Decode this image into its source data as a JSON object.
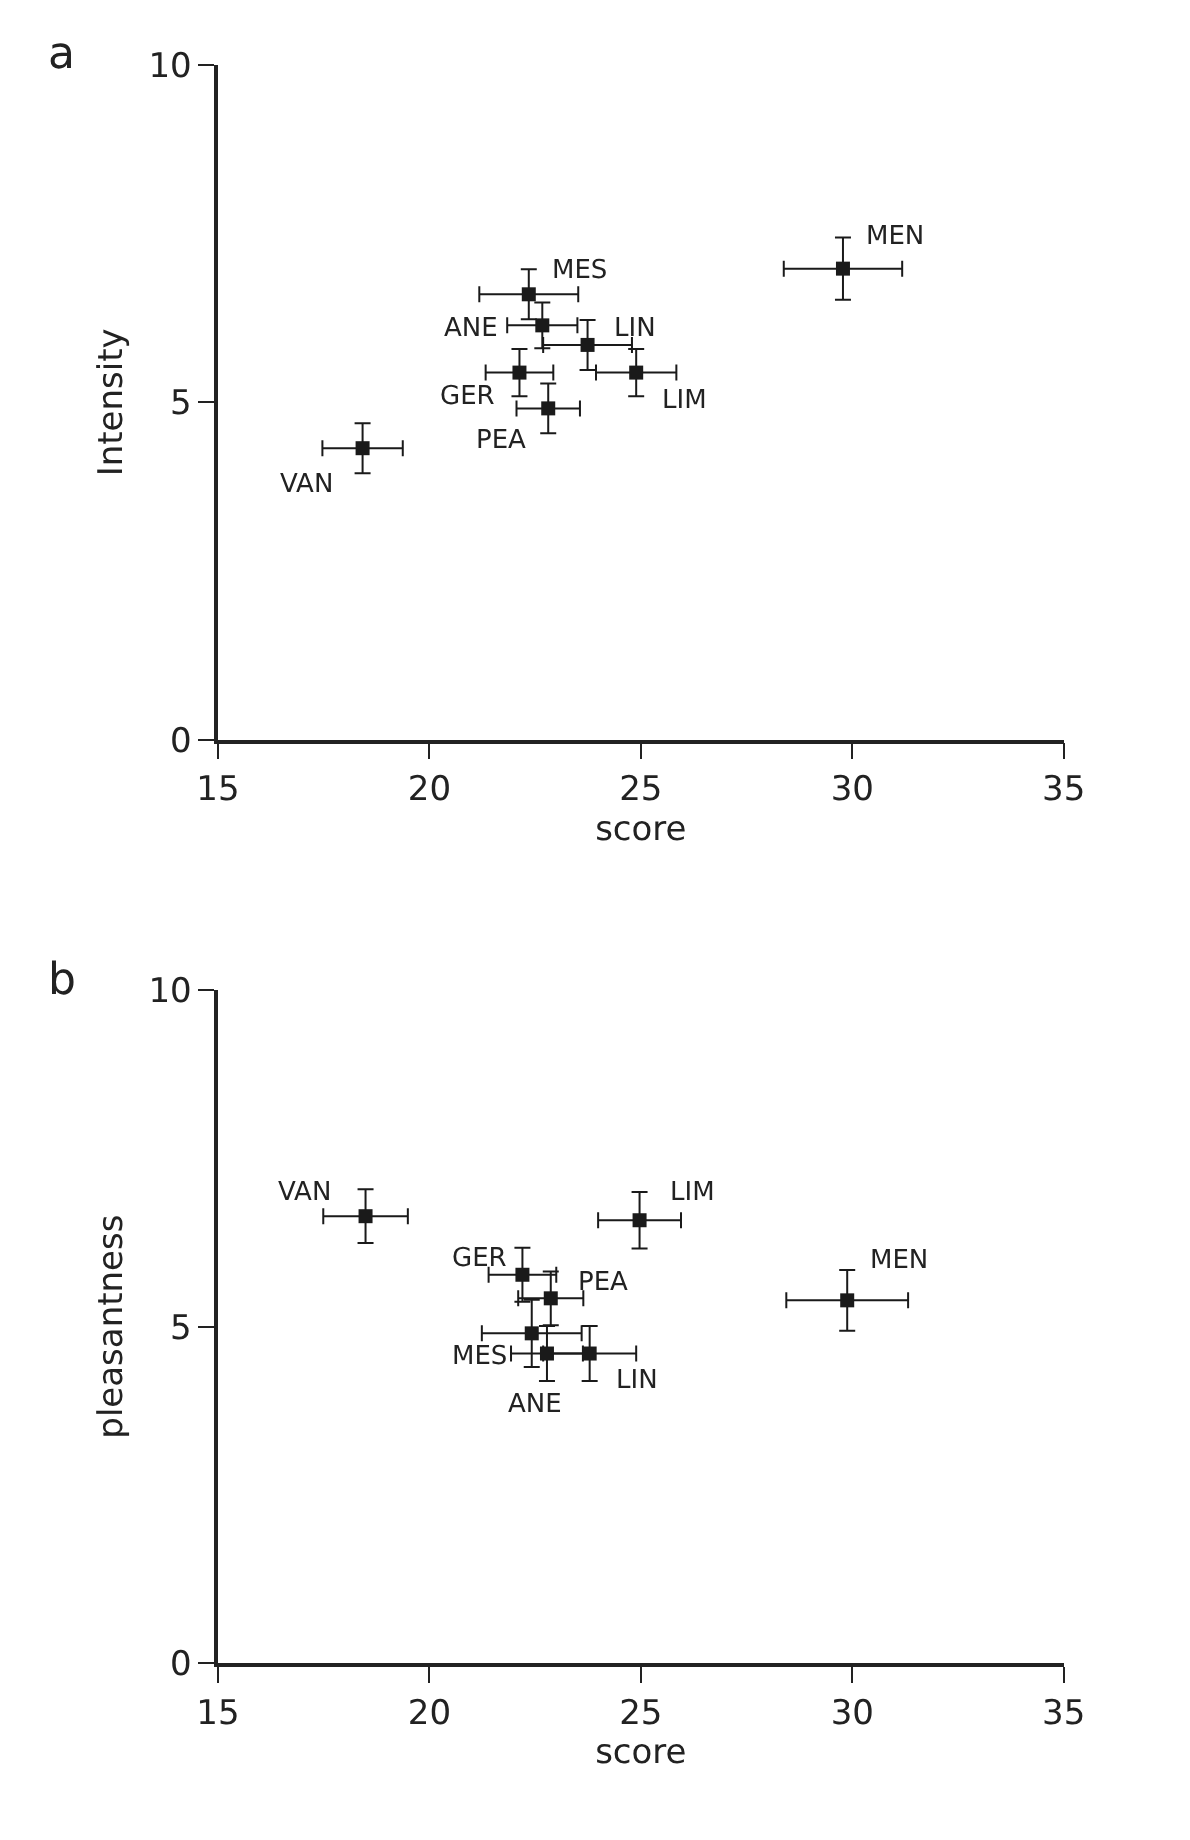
{
  "chart_data": [
    {
      "type": "scatter",
      "title": "a",
      "xlabel": "score",
      "ylabel": "Intensity",
      "xlim": [
        15,
        35
      ],
      "xticks": [
        15,
        20,
        25,
        30,
        35
      ],
      "ylim": [
        0,
        10
      ],
      "yticks": [
        0,
        5,
        10
      ],
      "marker": "square",
      "series": [
        {
          "color": "#1a1a1a",
          "x": [
            18.42,
            22.35,
            22.67,
            23.74,
            24.89,
            22.13,
            22.81,
            29.78
          ],
          "values": [
            4.32,
            6.6,
            6.14,
            5.85,
            5.44,
            5.44,
            4.91,
            6.98
          ],
          "errors": [
            0.37,
            0.37,
            0.34,
            0.37,
            0.35,
            0.35,
            0.37,
            0.46
          ],
          "xerrors": [
            0.95,
            1.17,
            0.83,
            1.05,
            0.95,
            0.8,
            0.75,
            1.4
          ]
        }
      ],
      "annotations": [
        {
          "text": "VAN",
          "x": 18.42,
          "y": 4.32
        },
        {
          "text": "MES",
          "x": 22.35,
          "y": 6.6
        },
        {
          "text": "ANE",
          "x": 22.67,
          "y": 6.14
        },
        {
          "text": "LIN",
          "x": 23.74,
          "y": 5.85
        },
        {
          "text": "LIM",
          "x": 24.89,
          "y": 5.44
        },
        {
          "text": "GER",
          "x": 22.13,
          "y": 5.44
        },
        {
          "text": "PEA",
          "x": 22.81,
          "y": 4.91
        },
        {
          "text": "MEN",
          "x": 29.78,
          "y": 6.98
        }
      ]
    },
    {
      "type": "scatter",
      "title": "b",
      "xlabel": "score",
      "ylabel": "pleasantness",
      "xlim": [
        15,
        35
      ],
      "xticks": [
        15,
        20,
        25,
        30,
        35
      ],
      "ylim": [
        0,
        10
      ],
      "yticks": [
        0,
        5,
        10
      ],
      "marker": "square",
      "series": [
        {
          "color": "#1a1a1a",
          "x": [
            18.49,
            24.97,
            22.2,
            22.87,
            22.42,
            22.78,
            23.79,
            29.88
          ],
          "values": [
            6.64,
            6.58,
            5.77,
            5.42,
            4.9,
            4.6,
            4.6,
            5.39
          ],
          "errors": [
            0.4,
            0.42,
            0.4,
            0.4,
            0.5,
            0.41,
            0.41,
            0.45
          ],
          "xerrors": [
            1.0,
            0.98,
            0.8,
            0.77,
            1.18,
            0.85,
            1.1,
            1.44
          ]
        }
      ],
      "annotations": [
        {
          "text": "VAN",
          "x": 18.49,
          "y": 6.64
        },
        {
          "text": "LIM",
          "x": 24.97,
          "y": 6.58
        },
        {
          "text": "GER",
          "x": 22.2,
          "y": 5.77
        },
        {
          "text": "PEA",
          "x": 22.87,
          "y": 5.42
        },
        {
          "text": "MES",
          "x": 22.42,
          "y": 4.9
        },
        {
          "text": "ANE",
          "x": 22.78,
          "y": 4.6
        },
        {
          "text": "LIN",
          "x": 23.79,
          "y": 4.6
        },
        {
          "text": "MEN",
          "x": 29.88,
          "y": 5.39
        }
      ]
    }
  ]
}
